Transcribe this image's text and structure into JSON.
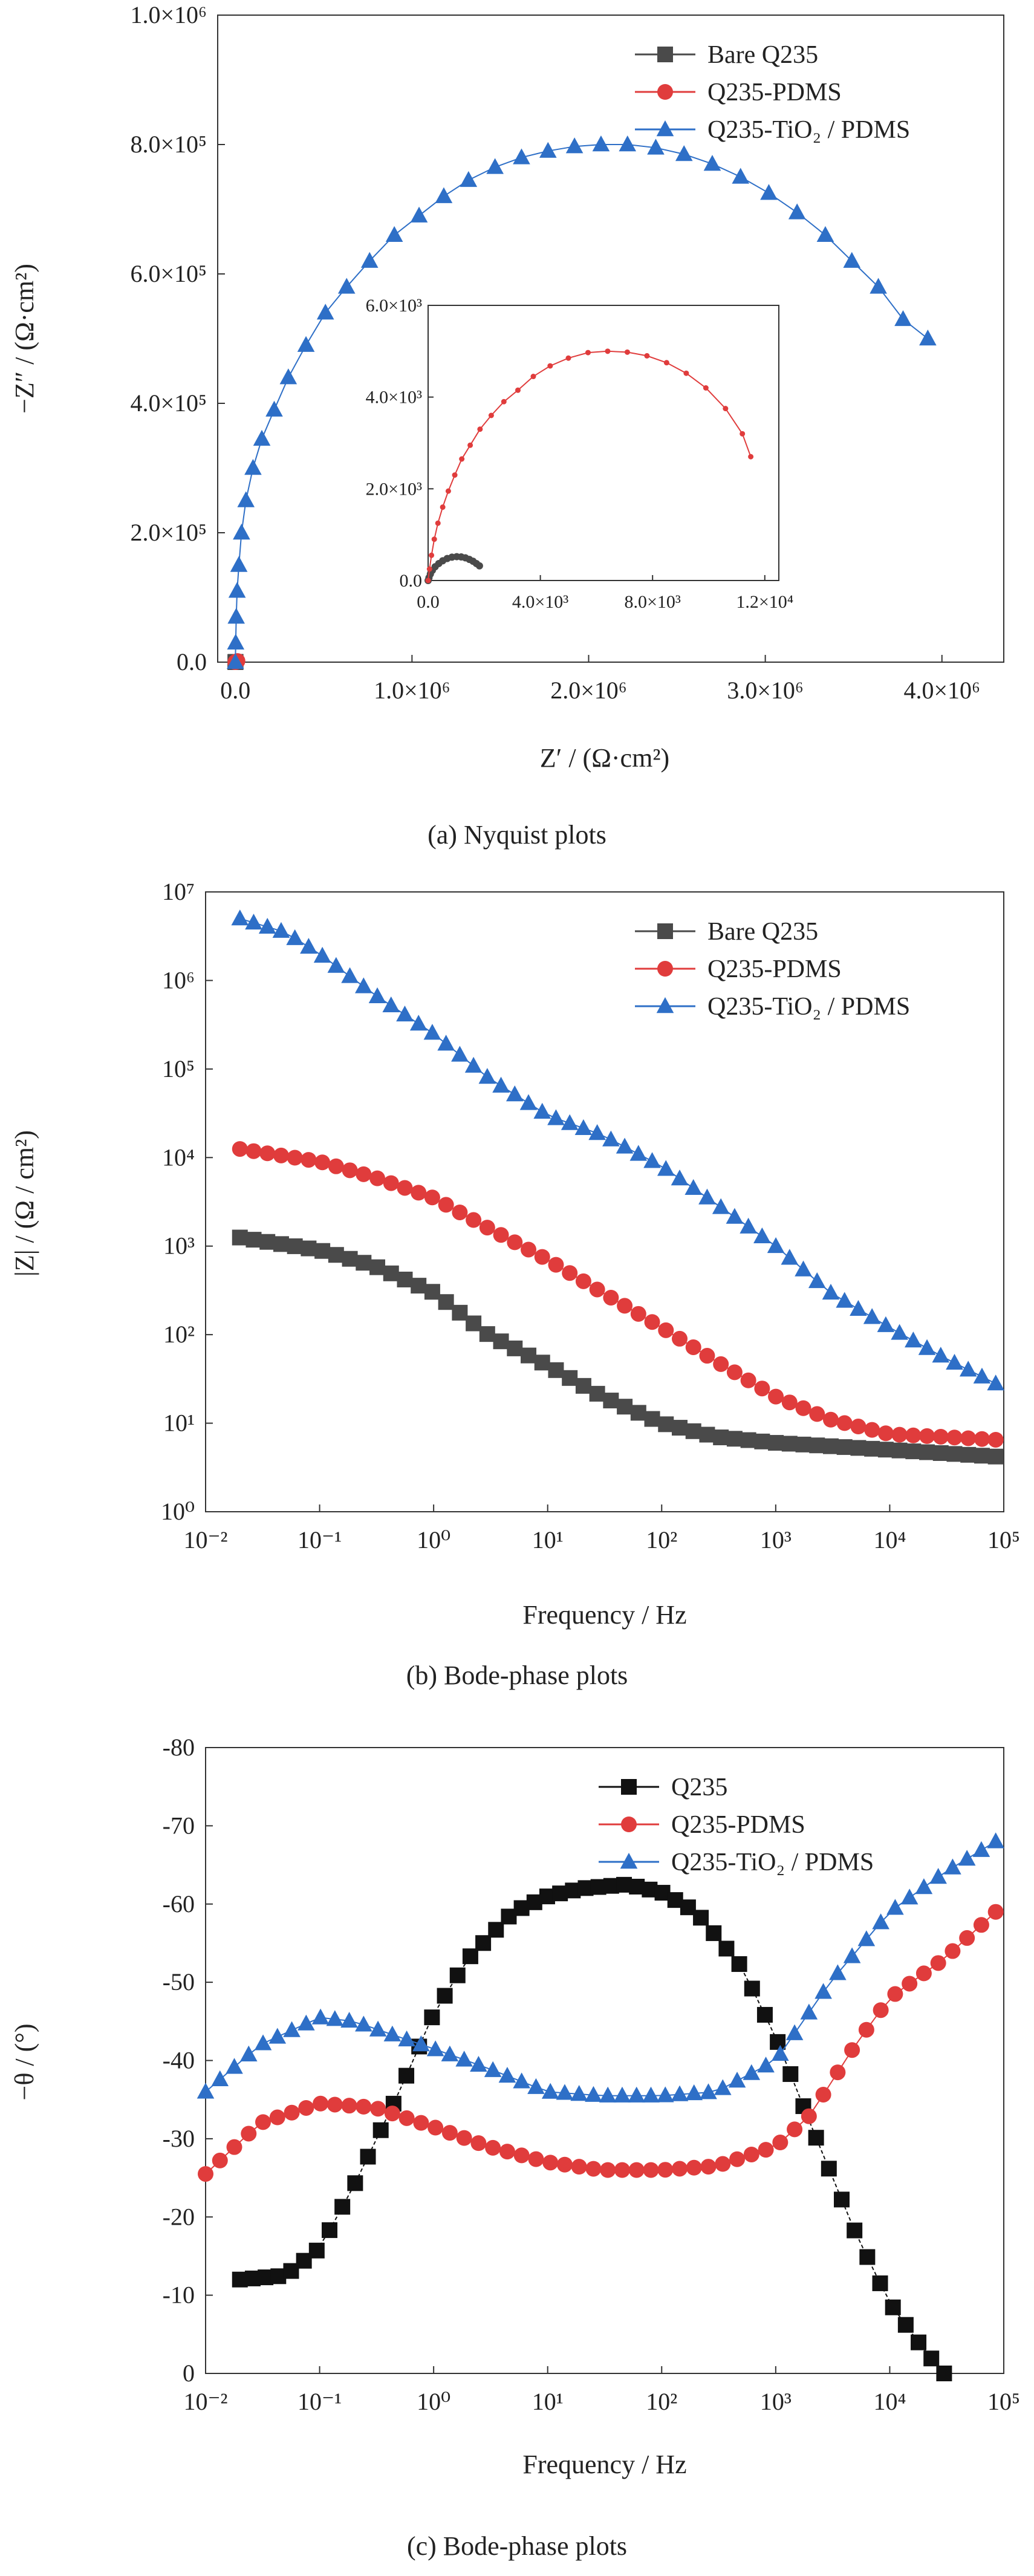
{
  "chart_data": [
    {
      "id": "nyquist",
      "type": "scatter",
      "caption": "(a) Nyquist plots",
      "xlabel": "Z′ / (Ω·cm²)",
      "ylabel": "−Z″ / (Ω·cm²)",
      "xlim": [
        -100000,
        4350000
      ],
      "ylim": [
        0,
        1000000
      ],
      "x_ticks": [
        {
          "value": 0,
          "label": "0.0"
        },
        {
          "value": 1000000,
          "label": "1.0×10⁶"
        },
        {
          "value": 2000000,
          "label": "2.0×10⁶"
        },
        {
          "value": 3000000,
          "label": "3.0×10⁶"
        },
        {
          "value": 4000000,
          "label": "4.0×10⁶"
        }
      ],
      "y_ticks": [
        {
          "value": 0,
          "label": "0.0"
        },
        {
          "value": 200000,
          "label": "2.0×10⁵"
        },
        {
          "value": 400000,
          "label": "4.0×10⁵"
        },
        {
          "value": 600000,
          "label": "6.0×10⁵"
        },
        {
          "value": 800000,
          "label": "8.0×10⁵"
        },
        {
          "value": 1000000,
          "label": "1.0×10⁶"
        }
      ],
      "legend_position": "top-right",
      "series": [
        {
          "name": "Bare Q235",
          "color": "#4a4a4a",
          "marker": "square",
          "x": [
            0,
            500,
            1000,
            1500
          ],
          "y": [
            0,
            200,
            300,
            400
          ]
        },
        {
          "name": "Q235-PDMS",
          "color": "#e03c3c",
          "marker": "circle",
          "x": [
            0,
            2000,
            5000,
            8000,
            12000
          ],
          "y": [
            0,
            400,
            900,
            1200,
            1800
          ]
        },
        {
          "name": "Q235-TiO₂ / PDMS",
          "color": "#2e6fc7",
          "marker": "triangle",
          "x": [
            0,
            2000,
            5000,
            10000,
            20000,
            35000,
            60000,
            100000,
            150000,
            220000,
            300000,
            400000,
            510000,
            630000,
            760000,
            900000,
            1040000,
            1180000,
            1320000,
            1470000,
            1620000,
            1770000,
            1920000,
            2070000,
            2220000,
            2380000,
            2540000,
            2700000,
            2860000,
            3020000,
            3180000,
            3340000,
            3490000,
            3640000,
            3780000,
            3920000
          ],
          "y": [
            0,
            30000,
            70000,
            110000,
            150000,
            200000,
            250000,
            300000,
            345000,
            390000,
            440000,
            490000,
            540000,
            580000,
            620000,
            660000,
            690000,
            720000,
            745000,
            765000,
            780000,
            790000,
            797000,
            800000,
            800000,
            795000,
            785000,
            770000,
            750000,
            725000,
            695000,
            660000,
            620000,
            580000,
            530000,
            500000
          ]
        }
      ],
      "inset": {
        "xlim": [
          0,
          12500
        ],
        "ylim": [
          0,
          6000
        ],
        "x_ticks": [
          {
            "value": 0,
            "label": "0.0"
          },
          {
            "value": 4000,
            "label": "4.0×10³"
          },
          {
            "value": 8000,
            "label": "8.0×10³"
          },
          {
            "value": 12000,
            "label": "1.2×10⁴"
          }
        ],
        "y_ticks": [
          {
            "value": 0,
            "label": "0.0"
          },
          {
            "value": 2000,
            "label": "2.0×10³"
          },
          {
            "value": 4000,
            "label": "4.0×10³"
          },
          {
            "value": 6000,
            "label": "6.0×10³"
          }
        ],
        "series": [
          {
            "name": "Bare Q235",
            "color": "#4a4a4a",
            "x": [
              0,
              30,
              80,
              150,
              250,
              380,
              520,
              680,
              850,
              1020,
              1180,
              1330,
              1470,
              1600,
              1720,
              1830
            ],
            "y": [
              0,
              60,
              140,
              220,
              300,
              370,
              430,
              480,
              510,
              520,
              515,
              495,
              460,
              420,
              370,
              320
            ]
          },
          {
            "name": "Q235-PDMS",
            "color": "#e03c3c",
            "x": [
              0,
              50,
              120,
              220,
              350,
              520,
              720,
              950,
              1200,
              1500,
              1850,
              2250,
              2700,
              3200,
              3750,
              4350,
              5000,
              5700,
              6400,
              7100,
              7800,
              8500,
              9200,
              9900,
              10600,
              11200,
              11500
            ],
            "y": [
              0,
              250,
              550,
              900,
              1250,
              1600,
              1950,
              2300,
              2650,
              2950,
              3300,
              3600,
              3900,
              4150,
              4450,
              4680,
              4850,
              4970,
              5000,
              4980,
              4900,
              4750,
              4520,
              4200,
              3750,
              3200,
              2700
            ]
          }
        ]
      }
    },
    {
      "id": "bode-modulus",
      "type": "scatter",
      "caption": "(b) Bode-phase plots",
      "xlabel": "Frequency / Hz",
      "ylabel": "|Z| / (Ω / cm²)",
      "x_scale": "log",
      "y_scale": "log",
      "xlim": [
        0.01,
        100000
      ],
      "ylim": [
        1,
        10000000
      ],
      "x_ticks": [
        {
          "value": 0.01,
          "label": "10⁻²"
        },
        {
          "value": 0.1,
          "label": "10⁻¹"
        },
        {
          "value": 1,
          "label": "10⁰"
        },
        {
          "value": 10,
          "label": "10¹"
        },
        {
          "value": 100,
          "label": "10²"
        },
        {
          "value": 1000,
          "label": "10³"
        },
        {
          "value": 10000,
          "label": "10⁴"
        },
        {
          "value": 100000,
          "label": "10⁵"
        }
      ],
      "y_ticks": [
        {
          "value": 1,
          "label": "10⁰"
        },
        {
          "value": 10,
          "label": "10¹"
        },
        {
          "value": 100,
          "label": "10²"
        },
        {
          "value": 1000,
          "label": "10³"
        },
        {
          "value": 10000,
          "label": "10⁴"
        },
        {
          "value": 100000,
          "label": "10⁵"
        },
        {
          "value": 1000000,
          "label": "10⁶"
        },
        {
          "value": 10000000,
          "label": "10⁷"
        }
      ],
      "legend_position": "top-right",
      "series": [
        {
          "name": "Bare Q235",
          "color": "#4a4a4a",
          "marker": "square",
          "x": [
            0.02,
            0.1,
            0.3,
            1,
            3,
            10,
            30,
            100,
            300,
            1000,
            10000,
            85000
          ],
          "y": [
            1250,
            900,
            600,
            300,
            100,
            45,
            20,
            10,
            7,
            6,
            5,
            4.2
          ]
        },
        {
          "name": "Q235-PDMS",
          "color": "#e03c3c",
          "marker": "circle",
          "x": [
            0.02,
            0.1,
            0.3,
            1,
            3,
            10,
            30,
            100,
            300,
            1000,
            3000,
            10000,
            30000,
            85000
          ],
          "y": [
            12500,
            9000,
            6000,
            3500,
            1600,
            700,
            300,
            120,
            50,
            20,
            11,
            7.5,
            7,
            6.5
          ]
        },
        {
          "name": "Q235-TiO₂ / PDMS",
          "color": "#2e6fc7",
          "marker": "triangle",
          "x": [
            0.02,
            0.05,
            0.1,
            0.3,
            1,
            3,
            10,
            30,
            100,
            300,
            1000,
            3000,
            10000,
            30000,
            85000
          ],
          "y": [
            5000000,
            3500000,
            2000000,
            700000,
            250000,
            80000,
            30000,
            18000,
            8000,
            3000,
            1000,
            300,
            120,
            55,
            28
          ]
        }
      ]
    },
    {
      "id": "bode-phase",
      "type": "scatter",
      "caption": "(c) Bode-phase plots",
      "xlabel": "Frequency / Hz",
      "ylabel": "−θ / (°)",
      "x_scale": "log",
      "xlim": [
        0.01,
        100000
      ],
      "ylim": [
        0,
        -80
      ],
      "x_ticks": [
        {
          "value": 0.01,
          "label": "10⁻²"
        },
        {
          "value": 0.1,
          "label": "10⁻¹"
        },
        {
          "value": 1,
          "label": "10⁰"
        },
        {
          "value": 10,
          "label": "10¹"
        },
        {
          "value": 100,
          "label": "10²"
        },
        {
          "value": 1000,
          "label": "10³"
        },
        {
          "value": 10000,
          "label": "10⁴"
        },
        {
          "value": 100000,
          "label": "10⁵"
        }
      ],
      "y_ticks": [
        {
          "value": 0,
          "label": "0"
        },
        {
          "value": -10,
          "label": "-10"
        },
        {
          "value": -20,
          "label": "-20"
        },
        {
          "value": -30,
          "label": "-30"
        },
        {
          "value": -40,
          "label": "-40"
        },
        {
          "value": -50,
          "label": "-50"
        },
        {
          "value": -60,
          "label": "-60"
        },
        {
          "value": -70,
          "label": "-70"
        },
        {
          "value": -80,
          "label": "-80"
        }
      ],
      "legend_position": "top-right",
      "series": [
        {
          "name": "Q235",
          "color": "#111111",
          "marker": "square",
          "x": [
            0.02,
            0.05,
            0.1,
            0.2,
            0.5,
            1,
            2,
            5,
            10,
            20,
            50,
            100,
            200,
            500,
            1000,
            2000,
            5000,
            10000,
            20000,
            30000
          ],
          "y": [
            -12,
            -12.5,
            -16,
            -24,
            -36,
            -46,
            -53,
            -59,
            -61,
            -62,
            -62.5,
            -61.5,
            -59,
            -52,
            -43,
            -32,
            -18,
            -9,
            -3,
            0
          ]
        },
        {
          "name": "Q235-PDMS",
          "color": "#e03c3c",
          "marker": "circle",
          "x": [
            0.01,
            0.03,
            0.1,
            0.3,
            1,
            3,
            10,
            30,
            100,
            300,
            1000,
            2000,
            5000,
            10000,
            30000,
            85000
          ],
          "y": [
            -25.5,
            -32,
            -34.5,
            -34,
            -31.5,
            -29,
            -27,
            -26,
            -26,
            -26.5,
            -29,
            -33,
            -42,
            -48,
            -53,
            -59
          ]
        },
        {
          "name": "Q235-TiO₂ / PDMS",
          "color": "#2e6fc7",
          "marker": "triangle",
          "x": [
            0.01,
            0.03,
            0.1,
            0.2,
            0.5,
            1,
            3,
            10,
            30,
            100,
            300,
            1000,
            3000,
            10000,
            30000,
            85000
          ],
          "y": [
            -36,
            -42,
            -45.5,
            -45,
            -43,
            -41.5,
            -39,
            -36,
            -35.5,
            -35.5,
            -36,
            -40,
            -50,
            -59,
            -64,
            -68
          ]
        }
      ]
    }
  ]
}
